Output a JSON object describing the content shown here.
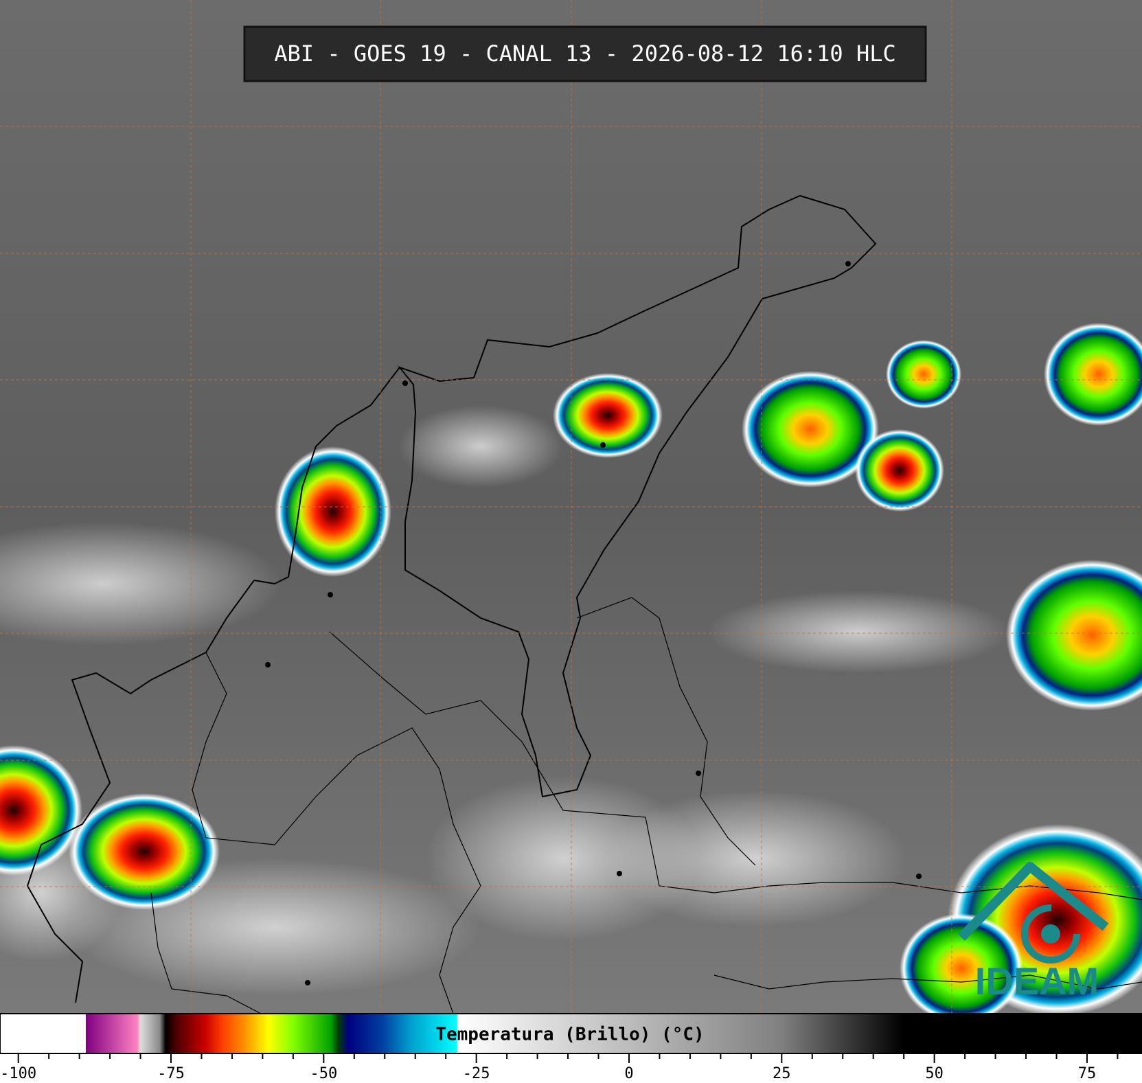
{
  "header": {
    "title": "ABI - GOES 19 - CANAL 13 - 2026-08-12 16:10 HLC"
  },
  "colorbar": {
    "label": "Temperatura (Brillo) (°C)",
    "range": [
      -103,
      84
    ],
    "ticks": [
      -100,
      -75,
      -50,
      -25,
      0,
      25,
      50,
      75
    ],
    "minor_ticks": [
      -95,
      -90,
      -85,
      -80,
      -70,
      -65,
      -60,
      -55,
      -45,
      -40,
      -35,
      -30,
      -20,
      -15,
      -10,
      -5,
      5,
      10,
      15,
      20,
      30,
      35,
      40,
      45,
      55,
      60,
      65,
      70,
      80
    ]
  },
  "logo": {
    "text": "IDEAM"
  }
}
